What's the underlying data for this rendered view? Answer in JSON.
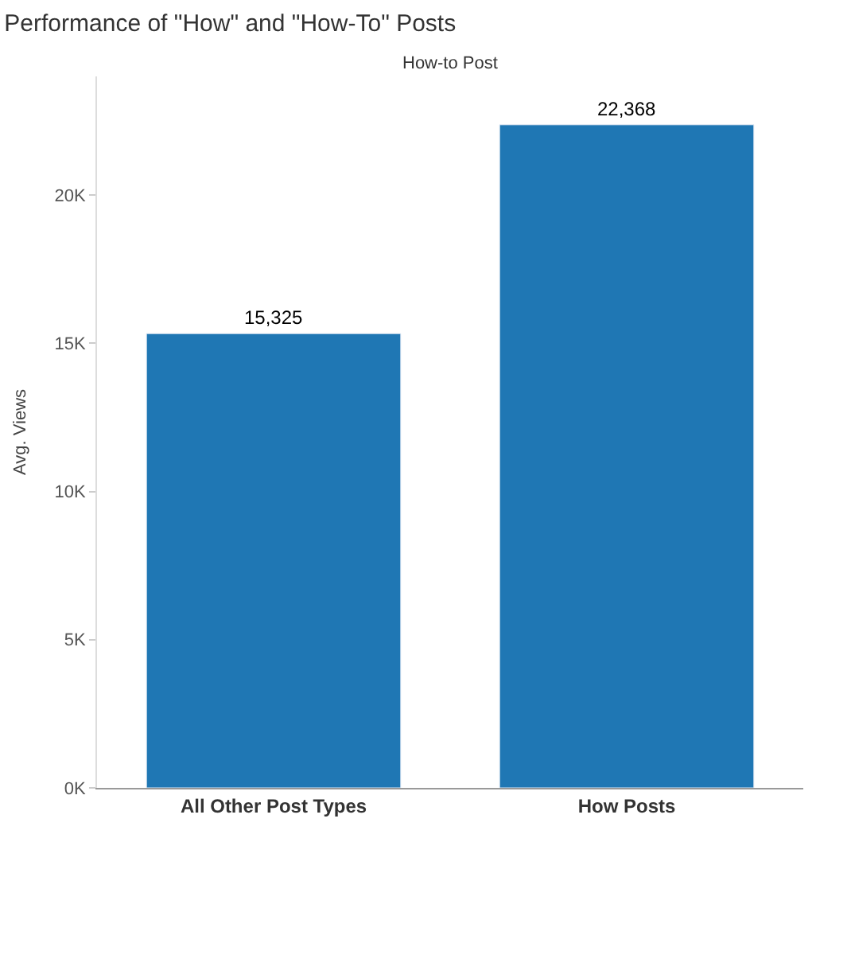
{
  "chart_data": {
    "type": "bar",
    "title": "Performance of \"How\" and \"How-To\" Posts",
    "subtitle": "How-to Post",
    "ylabel": "Avg. Views",
    "categories": [
      "All Other Post Types",
      "How Posts"
    ],
    "values": [
      15325,
      22368
    ],
    "value_labels": [
      "15,325",
      "22,368"
    ],
    "color": "#1f77b4",
    "ylim": [
      0,
      24000
    ],
    "yticks": [
      {
        "value": 0,
        "label": "0K"
      },
      {
        "value": 5000,
        "label": "5K"
      },
      {
        "value": 10000,
        "label": "10K"
      },
      {
        "value": 15000,
        "label": "15K"
      },
      {
        "value": 20000,
        "label": "20K"
      }
    ]
  }
}
